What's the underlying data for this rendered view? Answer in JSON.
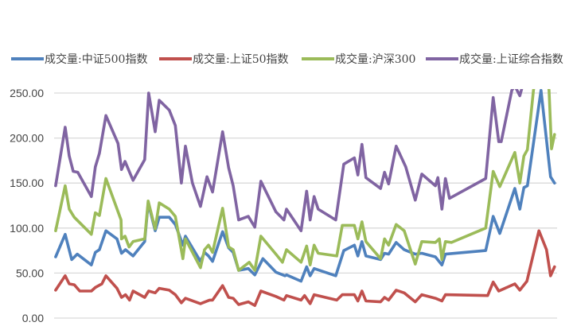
{
  "chart_data": {
    "type": "line",
    "title": "",
    "xlabel": "",
    "ylabel": "",
    "ylim": [
      0,
      250
    ],
    "xlim": [
      0,
      100
    ],
    "y_ticks": [
      "0.00",
      "50.00",
      "100.00",
      "150.00",
      "200.00",
      "250.00"
    ],
    "grid": true,
    "legend_position": "top",
    "series": [
      {
        "name": "成交量:中证500指数",
        "color": "#4f81bd",
        "points": [
          [
            0.3,
            68
          ],
          [
            2.2,
            93
          ],
          [
            3.5,
            65
          ],
          [
            4.6,
            71
          ],
          [
            7.4,
            59
          ],
          [
            8.2,
            73
          ],
          [
            9.0,
            76
          ],
          [
            10.3,
            97
          ],
          [
            12.5,
            88
          ],
          [
            13.4,
            72
          ],
          [
            14.2,
            76
          ],
          [
            15.7,
            69
          ],
          [
            18.0,
            85
          ],
          [
            18.7,
            128
          ],
          [
            20.1,
            97
          ],
          [
            20.9,
            112
          ],
          [
            22.9,
            112
          ],
          [
            24.1,
            104
          ],
          [
            25.6,
            81
          ],
          [
            26.1,
            91
          ],
          [
            29.1,
            63
          ],
          [
            29.9,
            73
          ],
          [
            30.7,
            69
          ],
          [
            31.5,
            63
          ],
          [
            33.5,
            96
          ],
          [
            34.7,
            78
          ],
          [
            35.6,
            73
          ],
          [
            36.7,
            53
          ],
          [
            38.6,
            55
          ],
          [
            39.9,
            48
          ],
          [
            41.5,
            66
          ],
          [
            44.1,
            51
          ],
          [
            45.9,
            47
          ],
          [
            46.2,
            48
          ],
          [
            49.1,
            41
          ],
          [
            50.2,
            57
          ],
          [
            50.9,
            47
          ],
          [
            51.7,
            55
          ],
          [
            56.0,
            47
          ],
          [
            57.6,
            75
          ],
          [
            59.7,
            81
          ],
          [
            60.4,
            69
          ],
          [
            61.2,
            85
          ],
          [
            62.0,
            69
          ],
          [
            64.9,
            65
          ],
          [
            65.7,
            72
          ],
          [
            66.5,
            71
          ],
          [
            68.0,
            84
          ],
          [
            69.6,
            76
          ],
          [
            71.8,
            71
          ],
          [
            73.1,
            72
          ],
          [
            75.8,
            68
          ],
          [
            77.1,
            59
          ],
          [
            77.8,
            71
          ],
          [
            85.8,
            75
          ],
          [
            87.3,
            113
          ],
          [
            88.6,
            94
          ],
          [
            91.6,
            144
          ],
          [
            92.6,
            121
          ],
          [
            93.4,
            145
          ],
          [
            94.1,
            147
          ],
          [
            96.8,
            253
          ],
          [
            98.7,
            157
          ],
          [
            99.5,
            150
          ]
        ]
      },
      {
        "name": "成交量:上证50指数",
        "color": "#c0504d",
        "points": [
          [
            0.3,
            31
          ],
          [
            2.2,
            47
          ],
          [
            3.0,
            38
          ],
          [
            4.0,
            37
          ],
          [
            5.1,
            30
          ],
          [
            7.4,
            30
          ],
          [
            8.2,
            34
          ],
          [
            9.5,
            38
          ],
          [
            10.3,
            47
          ],
          [
            12.5,
            33
          ],
          [
            13.4,
            23
          ],
          [
            14.2,
            26
          ],
          [
            15.0,
            20
          ],
          [
            15.7,
            30
          ],
          [
            18.0,
            23
          ],
          [
            18.8,
            30
          ],
          [
            20.1,
            28
          ],
          [
            20.9,
            33
          ],
          [
            22.9,
            31
          ],
          [
            24.1,
            26
          ],
          [
            25.3,
            17
          ],
          [
            26.1,
            22
          ],
          [
            29.1,
            16
          ],
          [
            30.9,
            20
          ],
          [
            31.5,
            20
          ],
          [
            33.5,
            36
          ],
          [
            34.7,
            23
          ],
          [
            35.6,
            22
          ],
          [
            36.7,
            15
          ],
          [
            38.6,
            18
          ],
          [
            39.9,
            14
          ],
          [
            41.1,
            30
          ],
          [
            44.1,
            24
          ],
          [
            45.7,
            20
          ],
          [
            46.2,
            25
          ],
          [
            49.1,
            20
          ],
          [
            49.8,
            25
          ],
          [
            50.9,
            16
          ],
          [
            51.7,
            26
          ],
          [
            56.2,
            20
          ],
          [
            57.3,
            26
          ],
          [
            59.7,
            26
          ],
          [
            60.4,
            19
          ],
          [
            61.2,
            30
          ],
          [
            62.0,
            19
          ],
          [
            64.9,
            18
          ],
          [
            65.7,
            23
          ],
          [
            66.5,
            20
          ],
          [
            68.0,
            31
          ],
          [
            69.6,
            28
          ],
          [
            71.8,
            18
          ],
          [
            73.1,
            26
          ],
          [
            75.8,
            22
          ],
          [
            77.1,
            19
          ],
          [
            77.8,
            26
          ],
          [
            86.2,
            25
          ],
          [
            87.3,
            40
          ],
          [
            88.4,
            30
          ],
          [
            91.6,
            38
          ],
          [
            92.6,
            31
          ],
          [
            94.0,
            41
          ],
          [
            96.4,
            97
          ],
          [
            97.9,
            76
          ],
          [
            98.7,
            47
          ],
          [
            99.5,
            57
          ]
        ]
      },
      {
        "name": "成交量:沪深300",
        "color": "#9bbb59",
        "points": [
          [
            0.3,
            97
          ],
          [
            2.2,
            147
          ],
          [
            3.0,
            121
          ],
          [
            4.0,
            112
          ],
          [
            7.4,
            93
          ],
          [
            8.2,
            117
          ],
          [
            9.0,
            114
          ],
          [
            10.3,
            155
          ],
          [
            13.3,
            109
          ],
          [
            13.4,
            88
          ],
          [
            14.1,
            91
          ],
          [
            14.9,
            79
          ],
          [
            15.7,
            85
          ],
          [
            18.0,
            88
          ],
          [
            18.7,
            130
          ],
          [
            20.1,
            99
          ],
          [
            20.9,
            128
          ],
          [
            22.9,
            121
          ],
          [
            24.1,
            113
          ],
          [
            25.6,
            66
          ],
          [
            26.1,
            88
          ],
          [
            29.1,
            56
          ],
          [
            29.9,
            76
          ],
          [
            30.7,
            81
          ],
          [
            31.5,
            73
          ],
          [
            33.5,
            122
          ],
          [
            34.7,
            79
          ],
          [
            35.6,
            76
          ],
          [
            36.7,
            53
          ],
          [
            38.8,
            62
          ],
          [
            39.9,
            53
          ],
          [
            41.1,
            91
          ],
          [
            44.1,
            71
          ],
          [
            45.4,
            62
          ],
          [
            46.2,
            76
          ],
          [
            49.1,
            62
          ],
          [
            50.2,
            80
          ],
          [
            50.9,
            59
          ],
          [
            51.7,
            81
          ],
          [
            52.5,
            72
          ],
          [
            56.2,
            69
          ],
          [
            57.3,
            103
          ],
          [
            59.7,
            103
          ],
          [
            60.4,
            88
          ],
          [
            61.2,
            107
          ],
          [
            62.0,
            85
          ],
          [
            64.9,
            66
          ],
          [
            65.7,
            88
          ],
          [
            66.5,
            81
          ],
          [
            68.0,
            104
          ],
          [
            69.6,
            97
          ],
          [
            71.8,
            60
          ],
          [
            73.1,
            85
          ],
          [
            75.8,
            84
          ],
          [
            76.6,
            88
          ],
          [
            77.1,
            65
          ],
          [
            77.8,
            85
          ],
          [
            79.0,
            84
          ],
          [
            85.8,
            100
          ],
          [
            87.3,
            163
          ],
          [
            88.6,
            146
          ],
          [
            91.6,
            184
          ],
          [
            92.6,
            150
          ],
          [
            93.4,
            180
          ],
          [
            94.1,
            187
          ],
          [
            95.3,
            253
          ],
          [
            96.5,
            290
          ],
          [
            97.5,
            290
          ],
          [
            98.4,
            253
          ],
          [
            98.9,
            188
          ],
          [
            99.5,
            204
          ]
        ]
      },
      {
        "name": "成交量:上证综合指数",
        "color": "#8064a2",
        "points": [
          [
            0.3,
            147
          ],
          [
            2.2,
            212
          ],
          [
            3.0,
            180
          ],
          [
            3.8,
            163
          ],
          [
            4.7,
            162
          ],
          [
            7.4,
            135
          ],
          [
            8.2,
            168
          ],
          [
            9.0,
            183
          ],
          [
            10.3,
            225
          ],
          [
            12.7,
            194
          ],
          [
            13.4,
            165
          ],
          [
            14.1,
            174
          ],
          [
            15.7,
            153
          ],
          [
            18.0,
            176
          ],
          [
            18.8,
            250
          ],
          [
            20.1,
            207
          ],
          [
            20.9,
            242
          ],
          [
            22.9,
            231
          ],
          [
            24.1,
            214
          ],
          [
            25.3,
            150
          ],
          [
            26.1,
            191
          ],
          [
            27.5,
            150
          ],
          [
            29.1,
            124
          ],
          [
            30.4,
            157
          ],
          [
            31.5,
            140
          ],
          [
            33.5,
            207
          ],
          [
            34.7,
            167
          ],
          [
            35.6,
            147
          ],
          [
            36.7,
            109
          ],
          [
            38.6,
            113
          ],
          [
            39.9,
            101
          ],
          [
            41.1,
            152
          ],
          [
            44.1,
            118
          ],
          [
            45.7,
            109
          ],
          [
            46.2,
            121
          ],
          [
            49.1,
            97
          ],
          [
            50.2,
            141
          ],
          [
            50.9,
            109
          ],
          [
            51.7,
            135
          ],
          [
            52.5,
            121
          ],
          [
            56.0,
            109
          ],
          [
            57.6,
            171
          ],
          [
            59.7,
            178
          ],
          [
            60.4,
            159
          ],
          [
            61.2,
            193
          ],
          [
            62.0,
            156
          ],
          [
            64.9,
            144
          ],
          [
            65.7,
            162
          ],
          [
            66.5,
            149
          ],
          [
            68.0,
            191
          ],
          [
            69.9,
            168
          ],
          [
            71.8,
            131
          ],
          [
            73.1,
            160
          ],
          [
            75.8,
            147
          ],
          [
            76.3,
            156
          ],
          [
            77.1,
            121
          ],
          [
            77.8,
            155
          ],
          [
            78.6,
            133
          ],
          [
            85.8,
            155
          ],
          [
            87.3,
            245
          ],
          [
            88.4,
            196
          ],
          [
            88.9,
            196
          ],
          [
            91.0,
            253
          ],
          [
            91.6,
            258
          ],
          [
            92.6,
            247
          ],
          [
            93.7,
            270
          ],
          [
            95.0,
            290
          ]
        ]
      }
    ]
  }
}
